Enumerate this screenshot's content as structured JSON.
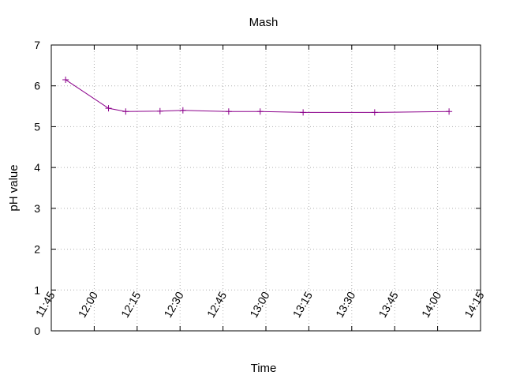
{
  "chart_data": {
    "type": "line",
    "title": "Mash",
    "xlabel": "Time",
    "ylabel": "pH value",
    "x_ticks": [
      "11:45",
      "12:00",
      "12:15",
      "12:30",
      "12:45",
      "13:00",
      "13:15",
      "13:30",
      "13:45",
      "14:00",
      "14:15"
    ],
    "x_tick_minutes": [
      705,
      720,
      735,
      750,
      765,
      780,
      795,
      810,
      825,
      840,
      855
    ],
    "xlim": [
      "11:45",
      "14:15"
    ],
    "y_ticks": [
      "0",
      "1",
      "2",
      "3",
      "4",
      "5",
      "6",
      "7"
    ],
    "ylim": [
      0,
      7
    ],
    "grid": true,
    "colors": {
      "series": "#8b008b",
      "grid": "#b0b0b0",
      "axis": "#000000"
    },
    "series": [
      {
        "x": [
          "11:50",
          "12:05",
          "12:11",
          "12:23",
          "12:31",
          "12:47",
          "12:58",
          "13:13",
          "13:38",
          "14:04"
        ],
        "y": [
          6.15,
          5.45,
          5.37,
          5.38,
          5.4,
          5.37,
          5.37,
          5.35,
          5.35,
          5.37
        ]
      }
    ]
  }
}
